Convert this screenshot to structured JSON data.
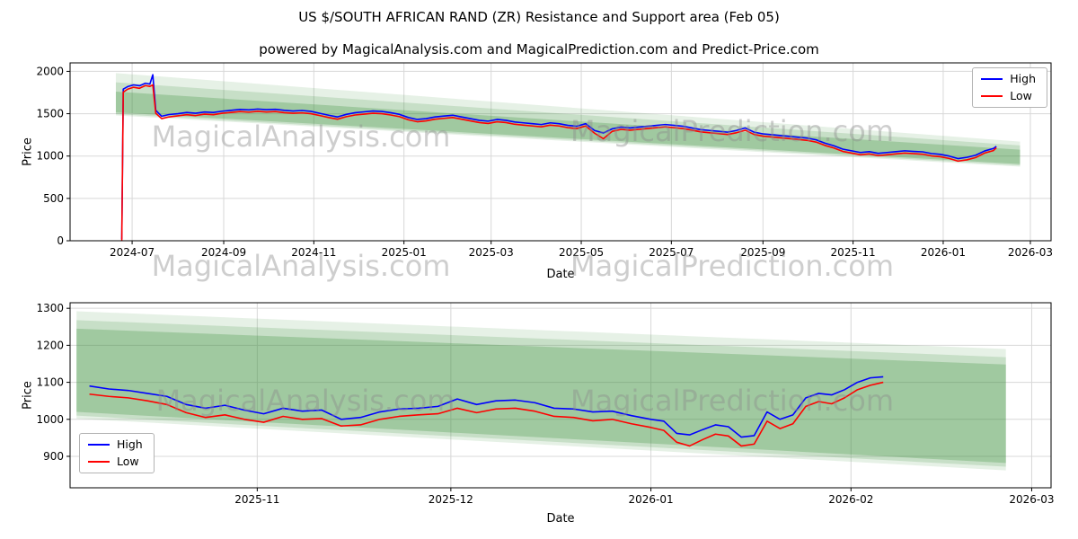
{
  "figure": {
    "title": "US $/SOUTH AFRICAN RAND (ZR) Resistance and Support area (Feb 05)",
    "subtitle": "powered by MagicalAnalysis.com and MagicalPrediction.com and Predict-Price.com",
    "watermark_left": "MagicalAnalysis.com",
    "watermark_right": "MagicalPrediction.com",
    "background_color": "#ffffff",
    "band_color": "#3c913c",
    "high_color": "#0000ff",
    "low_color": "#ff0000"
  },
  "chart_data": [
    {
      "type": "line",
      "title": "",
      "xlabel": "Date",
      "ylabel": "Price",
      "grid": true,
      "legend_position": "upper right",
      "xlim": [
        "2024-05-20",
        "2026-03-15"
      ],
      "ylim": [
        0,
        2100
      ],
      "yticks": [
        0,
        500,
        1000,
        1500,
        2000
      ],
      "xticks": [
        {
          "date": "2024-07-01",
          "label": "2024-07"
        },
        {
          "date": "2024-09-01",
          "label": "2024-09"
        },
        {
          "date": "2024-11-01",
          "label": "2024-11"
        },
        {
          "date": "2025-01-01",
          "label": "2025-01"
        },
        {
          "date": "2025-03-01",
          "label": "2025-03"
        },
        {
          "date": "2025-05-01",
          "label": "2025-05"
        },
        {
          "date": "2025-07-01",
          "label": "2025-07"
        },
        {
          "date": "2025-09-01",
          "label": "2025-09"
        },
        {
          "date": "2025-11-01",
          "label": "2025-11"
        },
        {
          "date": "2026-01-01",
          "label": "2026-01"
        },
        {
          "date": "2026-03-01",
          "label": "2026-03"
        }
      ],
      "bands": [
        {
          "x": [
            "2024-06-20",
            "2026-02-22"
          ],
          "top": [
            1980,
            1170
          ],
          "bottom": [
            1480,
            875
          ],
          "color": "#3c913c",
          "alpha": 0.13
        },
        {
          "x": [
            "2024-06-20",
            "2026-02-22"
          ],
          "top": [
            1870,
            1125
          ],
          "bottom": [
            1495,
            890
          ],
          "color": "#3c913c",
          "alpha": 0.18
        },
        {
          "x": [
            "2024-06-20",
            "2026-02-22"
          ],
          "top": [
            1760,
            1075
          ],
          "bottom": [
            1515,
            905
          ],
          "color": "#3c913c",
          "alpha": 0.28
        }
      ],
      "x": [
        "2024-06-24",
        "2024-06-25",
        "2024-06-28",
        "2024-07-02",
        "2024-07-06",
        "2024-07-10",
        "2024-07-13",
        "2024-07-15",
        "2024-07-17",
        "2024-07-21",
        "2024-07-26",
        "2024-08-01",
        "2024-08-07",
        "2024-08-13",
        "2024-08-19",
        "2024-08-25",
        "2024-08-31",
        "2024-09-06",
        "2024-09-12",
        "2024-09-18",
        "2024-09-24",
        "2024-09-30",
        "2024-10-06",
        "2024-10-12",
        "2024-10-18",
        "2024-10-24",
        "2024-10-30",
        "2024-11-05",
        "2024-11-11",
        "2024-11-17",
        "2024-11-23",
        "2024-11-29",
        "2024-12-05",
        "2024-12-11",
        "2024-12-17",
        "2024-12-23",
        "2024-12-29",
        "2025-01-04",
        "2025-01-10",
        "2025-01-16",
        "2025-01-22",
        "2025-01-28",
        "2025-02-03",
        "2025-02-09",
        "2025-02-15",
        "2025-02-21",
        "2025-02-27",
        "2025-03-05",
        "2025-03-11",
        "2025-03-17",
        "2025-03-23",
        "2025-03-29",
        "2025-04-04",
        "2025-04-10",
        "2025-04-16",
        "2025-04-22",
        "2025-04-28",
        "2025-05-04",
        "2025-05-10",
        "2025-05-16",
        "2025-05-22",
        "2025-05-28",
        "2025-06-03",
        "2025-06-09",
        "2025-06-15",
        "2025-06-21",
        "2025-06-27",
        "2025-07-03",
        "2025-07-09",
        "2025-07-15",
        "2025-07-21",
        "2025-07-27",
        "2025-08-02",
        "2025-08-08",
        "2025-08-14",
        "2025-08-20",
        "2025-08-26",
        "2025-09-01",
        "2025-09-07",
        "2025-09-13",
        "2025-09-19",
        "2025-09-25",
        "2025-10-01",
        "2025-10-07",
        "2025-10-13",
        "2025-10-19",
        "2025-10-25",
        "2025-10-31",
        "2025-11-06",
        "2025-11-12",
        "2025-11-18",
        "2025-11-24",
        "2025-11-30",
        "2025-12-06",
        "2025-12-12",
        "2025-12-18",
        "2025-12-24",
        "2025-12-30",
        "2026-01-05",
        "2026-01-11",
        "2026-01-17",
        "2026-01-23",
        "2026-01-29",
        "2026-02-04",
        "2026-02-06"
      ],
      "series": [
        {
          "name": "High",
          "color": "#0000ff",
          "values": [
            20,
            1790,
            1820,
            1840,
            1830,
            1860,
            1850,
            1960,
            1540,
            1470,
            1490,
            1500,
            1515,
            1505,
            1520,
            1515,
            1530,
            1540,
            1550,
            1545,
            1555,
            1548,
            1552,
            1540,
            1532,
            1538,
            1528,
            1505,
            1482,
            1462,
            1492,
            1512,
            1522,
            1532,
            1527,
            1512,
            1492,
            1455,
            1432,
            1442,
            1462,
            1472,
            1482,
            1462,
            1442,
            1422,
            1412,
            1432,
            1422,
            1402,
            1392,
            1382,
            1372,
            1392,
            1382,
            1362,
            1352,
            1382,
            1302,
            1272,
            1322,
            1342,
            1332,
            1342,
            1352,
            1362,
            1372,
            1362,
            1352,
            1332,
            1312,
            1302,
            1292,
            1282,
            1302,
            1332,
            1282,
            1262,
            1252,
            1242,
            1232,
            1222,
            1212,
            1192,
            1152,
            1122,
            1082,
            1062,
            1042,
            1052,
            1032,
            1042,
            1052,
            1062,
            1055,
            1050,
            1030,
            1020,
            1000,
            970,
            985,
            1010,
            1060,
            1090,
            1115
          ]
        },
        {
          "name": "Low",
          "color": "#ff0000",
          "values": [
            0,
            1755,
            1790,
            1812,
            1800,
            1832,
            1822,
            1840,
            1505,
            1442,
            1462,
            1475,
            1488,
            1478,
            1495,
            1488,
            1505,
            1515,
            1525,
            1518,
            1528,
            1520,
            1525,
            1512,
            1505,
            1510,
            1500,
            1478,
            1455,
            1435,
            1465,
            1485,
            1495,
            1505,
            1500,
            1485,
            1465,
            1428,
            1405,
            1415,
            1435,
            1445,
            1455,
            1435,
            1415,
            1395,
            1385,
            1405,
            1395,
            1375,
            1365,
            1355,
            1345,
            1365,
            1355,
            1335,
            1325,
            1355,
            1270,
            1205,
            1292,
            1315,
            1305,
            1315,
            1325,
            1335,
            1345,
            1335,
            1325,
            1305,
            1285,
            1275,
            1265,
            1255,
            1275,
            1305,
            1255,
            1235,
            1225,
            1215,
            1205,
            1195,
            1185,
            1165,
            1125,
            1095,
            1055,
            1035,
            1015,
            1025,
            1005,
            1015,
            1025,
            1035,
            1028,
            1022,
            1002,
            992,
            972,
            940,
            955,
            982,
            1035,
            1065,
            1098
          ]
        }
      ]
    },
    {
      "type": "line",
      "title": "",
      "xlabel": "Date",
      "ylabel": "Price",
      "grid": true,
      "legend_position": "lower left",
      "xlim": [
        "2025-10-03",
        "2026-03-04"
      ],
      "ylim": [
        815,
        1315
      ],
      "yticks": [
        900,
        1000,
        1100,
        1200,
        1300
      ],
      "xticks": [
        {
          "date": "2025-11-01",
          "label": "2025-11"
        },
        {
          "date": "2025-12-01",
          "label": "2025-12"
        },
        {
          "date": "2026-01-01",
          "label": "2026-01"
        },
        {
          "date": "2026-02-01",
          "label": "2026-02"
        },
        {
          "date": "2026-03-01",
          "label": "2026-03"
        }
      ],
      "bands": [
        {
          "x": [
            "2025-10-04",
            "2026-02-25"
          ],
          "top": [
            1292,
            1190
          ],
          "bottom": [
            1002,
            862
          ],
          "color": "#3c913c",
          "alpha": 0.13
        },
        {
          "x": [
            "2025-10-04",
            "2026-02-25"
          ],
          "top": [
            1268,
            1168
          ],
          "bottom": [
            1010,
            872
          ],
          "color": "#3c913c",
          "alpha": 0.18
        },
        {
          "x": [
            "2025-10-04",
            "2026-02-25"
          ],
          "top": [
            1245,
            1148
          ],
          "bottom": [
            1020,
            882
          ],
          "color": "#3c913c",
          "alpha": 0.28
        }
      ],
      "x": [
        "2025-10-06",
        "2025-10-09",
        "2025-10-12",
        "2025-10-15",
        "2025-10-18",
        "2025-10-21",
        "2025-10-24",
        "2025-10-27",
        "2025-10-30",
        "2025-11-02",
        "2025-11-05",
        "2025-11-08",
        "2025-11-11",
        "2025-11-14",
        "2025-11-17",
        "2025-11-20",
        "2025-11-23",
        "2025-11-26",
        "2025-11-29",
        "2025-12-02",
        "2025-12-05",
        "2025-12-08",
        "2025-12-11",
        "2025-12-14",
        "2025-12-17",
        "2025-12-20",
        "2025-12-23",
        "2025-12-26",
        "2025-12-29",
        "2026-01-01",
        "2026-01-03",
        "2026-01-05",
        "2026-01-07",
        "2026-01-09",
        "2026-01-11",
        "2026-01-13",
        "2026-01-15",
        "2026-01-17",
        "2026-01-19",
        "2026-01-21",
        "2026-01-23",
        "2026-01-25",
        "2026-01-27",
        "2026-01-29",
        "2026-01-31",
        "2026-02-02",
        "2026-02-04",
        "2026-02-06"
      ],
      "series": [
        {
          "name": "High",
          "color": "#0000ff",
          "values": [
            1090,
            1082,
            1078,
            1070,
            1062,
            1040,
            1030,
            1038,
            1025,
            1015,
            1030,
            1022,
            1025,
            1000,
            1005,
            1020,
            1028,
            1030,
            1035,
            1055,
            1040,
            1050,
            1052,
            1045,
            1030,
            1028,
            1020,
            1022,
            1010,
            1000,
            995,
            962,
            958,
            972,
            985,
            980,
            952,
            956,
            1020,
            1000,
            1012,
            1058,
            1070,
            1066,
            1080,
            1100,
            1112,
            1115
          ]
        },
        {
          "name": "Low",
          "color": "#ff0000",
          "values": [
            1068,
            1062,
            1058,
            1050,
            1040,
            1018,
            1005,
            1012,
            1000,
            992,
            1008,
            1000,
            1002,
            982,
            985,
            1000,
            1008,
            1012,
            1015,
            1030,
            1018,
            1028,
            1030,
            1022,
            1008,
            1005,
            996,
            1000,
            988,
            978,
            970,
            938,
            928,
            945,
            960,
            955,
            928,
            933,
            995,
            975,
            988,
            1035,
            1048,
            1042,
            1058,
            1080,
            1092,
            1100
          ]
        }
      ]
    }
  ]
}
